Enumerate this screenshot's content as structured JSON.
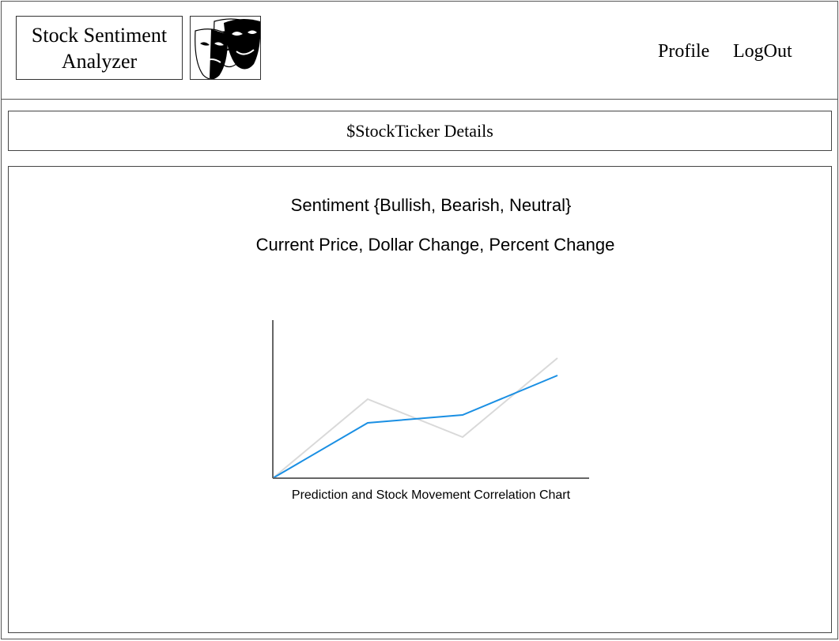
{
  "header": {
    "app_title": "Stock Sentiment Analyzer",
    "logo_icon": "theater-masks-icon",
    "nav": {
      "profile_label": "Profile",
      "logout_label": "LogOut"
    }
  },
  "ticker": {
    "title": "$StockTicker Details"
  },
  "details": {
    "sentiment_text": "Sentiment {Bullish, Bearish, Neutral}",
    "price_text": "Current Price, Dollar Change, Percent Change"
  },
  "chart_data": {
    "type": "line",
    "title": "Prediction and Stock Movement Correlation Chart",
    "xlabel": "",
    "ylabel": "",
    "x": [
      0,
      1,
      2,
      3
    ],
    "ylim": [
      0,
      10
    ],
    "series": [
      {
        "color": "#1a8fe3",
        "values": [
          0,
          3.5,
          4.0,
          6.5
        ]
      },
      {
        "color": "#d9d9d9",
        "values": [
          0,
          5.0,
          2.6,
          7.6
        ]
      }
    ],
    "grid": false,
    "legend": "none"
  }
}
